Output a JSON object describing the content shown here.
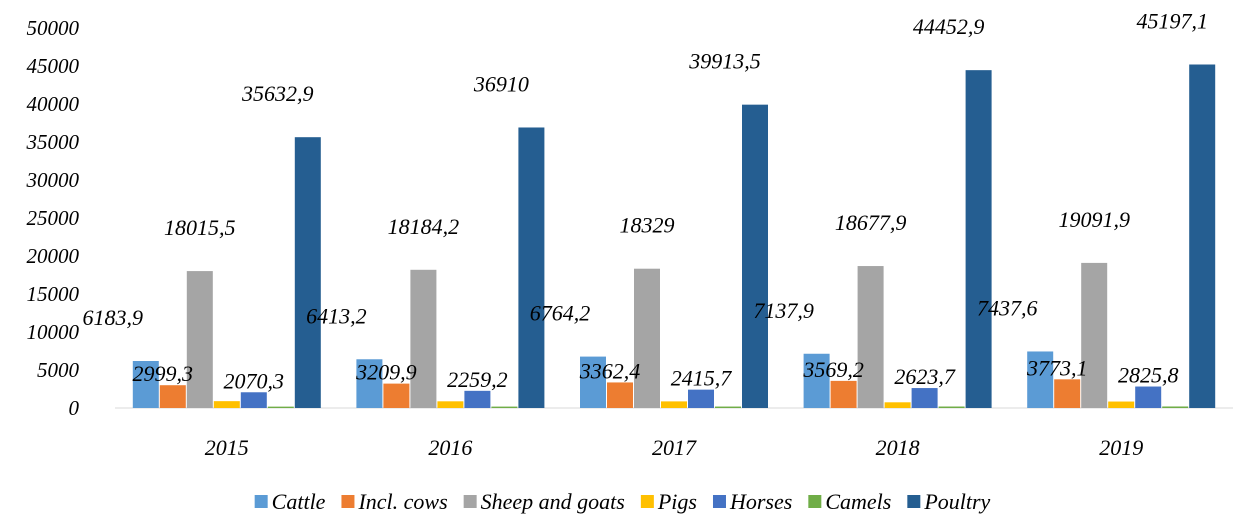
{
  "chart_data": {
    "type": "bar",
    "categories": [
      "2015",
      "2016",
      "2017",
      "2018",
      "2019"
    ],
    "ylim": [
      0,
      50000
    ],
    "yticks": [
      0,
      5000,
      10000,
      15000,
      20000,
      25000,
      30000,
      35000,
      40000,
      45000,
      50000
    ],
    "grid": false,
    "legend_position": "bottom",
    "series": [
      {
        "name": "Cattle",
        "color": "#5B9BD5",
        "values": [
          6183.9,
          6413.2,
          6764.2,
          7137.9,
          7437.6
        ],
        "labels": [
          "6183,9",
          "6413,2",
          "6764,2",
          "7137,9",
          "7437,6"
        ]
      },
      {
        "name": "Incl. cows",
        "color": "#ED7D31",
        "values": [
          2999.3,
          3209.9,
          3362.4,
          3569.2,
          3773.1
        ],
        "labels": [
          "2999,3",
          "3209,9",
          "3362,4",
          "3569,2",
          "3773,1"
        ]
      },
      {
        "name": "Sheep and goats",
        "color": "#A5A5A5",
        "values": [
          18015.5,
          18184.2,
          18329,
          18677.9,
          19091.9
        ],
        "labels": [
          "18015,5",
          "18184,2",
          "18329",
          "18677,9",
          "19091,9"
        ]
      },
      {
        "name": "Pigs",
        "color": "#FFC000",
        "values": [
          900,
          880,
          870,
          750,
          850
        ],
        "labels": null
      },
      {
        "name": "Horses",
        "color": "#4472C4",
        "values": [
          2070.3,
          2259.2,
          2415.7,
          2623.7,
          2825.8
        ],
        "labels": [
          "2070,3",
          "2259,2",
          "2415,7",
          "2623,7",
          "2825,8"
        ]
      },
      {
        "name": "Camels",
        "color": "#70AD47",
        "values": [
          180,
          185,
          190,
          195,
          200
        ],
        "labels": null
      },
      {
        "name": "Poultry",
        "color": "#255E91",
        "values": [
          35632.9,
          36910,
          39913.5,
          44452.9,
          45197.1
        ],
        "labels": [
          "35632,9",
          "36910",
          "39913,5",
          "44452,9",
          "45197,1"
        ]
      }
    ]
  }
}
